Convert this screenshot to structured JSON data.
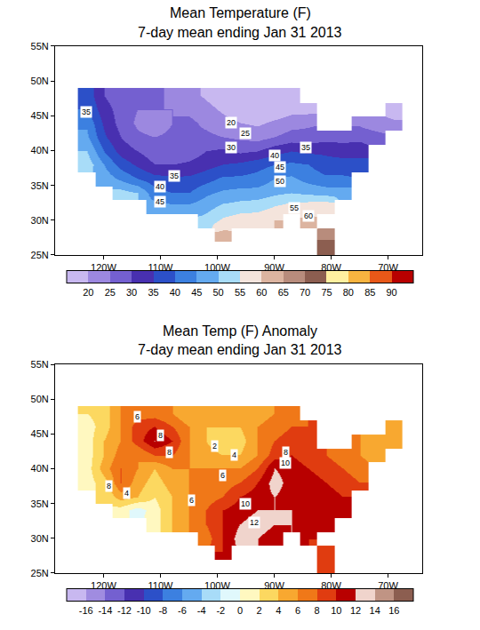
{
  "chart_data": [
    {
      "type": "heatmap",
      "title": "Mean Temperature (F)",
      "subtitle": "7-day mean ending Jan 31 2013",
      "x": [
        -123,
        -120,
        -117,
        -114,
        -111,
        -108,
        -105,
        -102,
        -99,
        -96,
        -93,
        -90,
        -87,
        -84,
        -81,
        -78,
        -75,
        -72,
        -69,
        -66
      ],
      "y": [
        26,
        28,
        30,
        32,
        34,
        36,
        38,
        40,
        42,
        44,
        46,
        48
      ],
      "z": [
        [
          null,
          null,
          null,
          null,
          null,
          null,
          null,
          null,
          null,
          null,
          null,
          null,
          null,
          null,
          73,
          null,
          null,
          null,
          null,
          null
        ],
        [
          null,
          null,
          null,
          null,
          null,
          null,
          null,
          null,
          62,
          null,
          null,
          null,
          null,
          null,
          68,
          null,
          null,
          null,
          null,
          null
        ],
        [
          null,
          null,
          null,
          null,
          null,
          null,
          null,
          52,
          56,
          58,
          58,
          60,
          null,
          61,
          null,
          null,
          null,
          null,
          null,
          null
        ],
        [
          null,
          null,
          null,
          null,
          47,
          46,
          46,
          48,
          51,
          52,
          53,
          55,
          57,
          58,
          59,
          null,
          null,
          null,
          null,
          null
        ],
        [
          null,
          null,
          52,
          50,
          42,
          40,
          40,
          44,
          46,
          47,
          47,
          49,
          50,
          49,
          48,
          48,
          null,
          null,
          null,
          null
        ],
        [
          null,
          48,
          44,
          40,
          37,
          36,
          36,
          38,
          41,
          41,
          42,
          45,
          46,
          43,
          41,
          41,
          null,
          null,
          null,
          null
        ],
        [
          53,
          45,
          38,
          34,
          30,
          30,
          31,
          33,
          35,
          36,
          38,
          40,
          41,
          40,
          37,
          37,
          36,
          null,
          null,
          null
        ],
        [
          50,
          40,
          33,
          30,
          27,
          26,
          27,
          30,
          31,
          29,
          30,
          33,
          35,
          34,
          34,
          33,
          34,
          null,
          null,
          null
        ],
        [
          46,
          36,
          30,
          26,
          25,
          26,
          26,
          26,
          25,
          24,
          23,
          25,
          27,
          27,
          28,
          28,
          28,
          27,
          null,
          null
        ],
        [
          44,
          34,
          28,
          24,
          22,
          25,
          26,
          24,
          22,
          20,
          19,
          21,
          23,
          24,
          null,
          null,
          24,
          22,
          21,
          null
        ],
        [
          40,
          32,
          28,
          25,
          25,
          25,
          24,
          22,
          19,
          17,
          15,
          16,
          18,
          18,
          null,
          null,
          null,
          null,
          17,
          null
        ],
        [
          38,
          30,
          27,
          26,
          26,
          24,
          22,
          19,
          16,
          14,
          13,
          15,
          17,
          null,
          null,
          null,
          null,
          null,
          null,
          null
        ]
      ],
      "xlim": [
        -128.5,
        -64
      ],
      "ylim": [
        25,
        55
      ],
      "xticks": [
        {
          "value": -120,
          "label": "120W"
        },
        {
          "value": -110,
          "label": "110W"
        },
        {
          "value": -100,
          "label": "100W"
        },
        {
          "value": -90,
          "label": "90W"
        },
        {
          "value": -80,
          "label": "80W"
        },
        {
          "value": -70,
          "label": "70W"
        }
      ],
      "yticks": [
        {
          "value": 25,
          "label": "25N"
        },
        {
          "value": 30,
          "label": "30N"
        },
        {
          "value": 35,
          "label": "35N"
        },
        {
          "value": 40,
          "label": "40N"
        },
        {
          "value": 45,
          "label": "45N"
        },
        {
          "value": 50,
          "label": "50N"
        },
        {
          "value": 55,
          "label": "55N"
        }
      ],
      "grid": false,
      "colorbar": {
        "range": [
          15,
          95
        ],
        "ticks": [
          20,
          25,
          30,
          35,
          40,
          45,
          50,
          55,
          60,
          65,
          70,
          75,
          80,
          85,
          90
        ],
        "colors": [
          "#c8b8f0",
          "#9c88e0",
          "#7460d0",
          "#4830b0",
          "#2c50c8",
          "#3c80e0",
          "#64aaf0",
          "#a8dcf8",
          "#f4e4dc",
          "#dcb4a0",
          "#b88c7c",
          "#8c5e50",
          "#fff0a0",
          "#f8b440",
          "#e85818",
          "#b80000"
        ]
      },
      "contour_labels": [
        {
          "x": -123,
          "y": 45.5,
          "value": 35
        },
        {
          "x": -97.5,
          "y": 44,
          "value": 20
        },
        {
          "x": -95,
          "y": 42.5,
          "value": 25
        },
        {
          "x": -97.5,
          "y": 40.5,
          "value": 30
        },
        {
          "x": -84.5,
          "y": 40.5,
          "value": 35
        },
        {
          "x": -90,
          "y": 39.3,
          "value": 40
        },
        {
          "x": -89,
          "y": 37.7,
          "value": 45
        },
        {
          "x": -89,
          "y": 35.6,
          "value": 50
        },
        {
          "x": -107.5,
          "y": 36.3,
          "value": 35
        },
        {
          "x": -110,
          "y": 34.8,
          "value": 40
        },
        {
          "x": -110,
          "y": 32.6,
          "value": 45
        },
        {
          "x": -86.5,
          "y": 31.8,
          "value": 55
        },
        {
          "x": -84,
          "y": 30.6,
          "value": 60
        }
      ]
    },
    {
      "type": "heatmap",
      "title": "Mean Temp (F) Anomaly",
      "subtitle": "7-day mean ending Jan 31 2013",
      "x": [
        -123,
        -120,
        -117,
        -114,
        -111,
        -108,
        -105,
        -102,
        -99,
        -96,
        -93,
        -90,
        -87,
        -84,
        -81,
        -78,
        -75,
        -72,
        -69,
        -66
      ],
      "y": [
        26,
        28,
        30,
        32,
        34,
        36,
        38,
        40,
        42,
        44,
        46,
        48
      ],
      "z": [
        [
          null,
          null,
          null,
          null,
          null,
          null,
          null,
          null,
          null,
          null,
          null,
          null,
          null,
          null,
          8,
          null,
          null,
          null,
          null,
          null
        ],
        [
          null,
          null,
          null,
          null,
          null,
          null,
          null,
          null,
          10,
          null,
          null,
          null,
          null,
          null,
          9,
          null,
          null,
          null,
          null,
          null
        ],
        [
          null,
          null,
          null,
          null,
          null,
          null,
          null,
          7,
          10,
          13,
          12,
          11,
          null,
          10,
          null,
          null,
          null,
          null,
          null,
          null
        ],
        [
          null,
          null,
          null,
          null,
          1,
          4,
          6,
          8,
          10,
          12,
          13,
          12,
          12,
          11,
          10,
          null,
          null,
          null,
          null,
          null
        ],
        [
          null,
          null,
          1,
          -1,
          1,
          4,
          6,
          8,
          10,
          11,
          12,
          12,
          12,
          11,
          11,
          10,
          null,
          null,
          null,
          null
        ],
        [
          null,
          2,
          5,
          4,
          2,
          4,
          6,
          7,
          8,
          10,
          11,
          12,
          11,
          11,
          11,
          10,
          null,
          null,
          null,
          null
        ],
        [
          1,
          3,
          8,
          5,
          3,
          5,
          6,
          7,
          7,
          8,
          10,
          13,
          11,
          11,
          10,
          9,
          8,
          null,
          null,
          null
        ],
        [
          1,
          5,
          8,
          6,
          4,
          6,
          6,
          6,
          6,
          6,
          8,
          12,
          11,
          10,
          9,
          8,
          7,
          null,
          null,
          null
        ],
        [
          1,
          4,
          7,
          6,
          8,
          8,
          6,
          5,
          4,
          4,
          6,
          9,
          10,
          9,
          8,
          7,
          6,
          5,
          null,
          null
        ],
        [
          1,
          4,
          6,
          9,
          12,
          10,
          6,
          4,
          2,
          3,
          6,
          8,
          9,
          8,
          null,
          null,
          6,
          5,
          4,
          null
        ],
        [
          1,
          3,
          6,
          9,
          10,
          8,
          6,
          4,
          4,
          4,
          6,
          7,
          8,
          8,
          null,
          null,
          null,
          null,
          4,
          null
        ],
        [
          2,
          3,
          6,
          7,
          7,
          6,
          4,
          4,
          4,
          4,
          5,
          6,
          6,
          null,
          null,
          null,
          null,
          null,
          null,
          null
        ]
      ],
      "xlim": [
        -128.5,
        -64
      ],
      "ylim": [
        25,
        55
      ],
      "xticks": [
        {
          "value": -120,
          "label": "120W"
        },
        {
          "value": -110,
          "label": "110W"
        },
        {
          "value": -100,
          "label": "100W"
        },
        {
          "value": -90,
          "label": "90W"
        },
        {
          "value": -80,
          "label": "80W"
        },
        {
          "value": -70,
          "label": "70W"
        }
      ],
      "yticks": [
        {
          "value": 25,
          "label": "25N"
        },
        {
          "value": 30,
          "label": "30N"
        },
        {
          "value": 35,
          "label": "35N"
        },
        {
          "value": 40,
          "label": "40N"
        },
        {
          "value": 45,
          "label": "45N"
        },
        {
          "value": 50,
          "label": "50N"
        },
        {
          "value": 55,
          "label": "55N"
        }
      ],
      "grid": false,
      "colorbar": {
        "range": [
          -18,
          18
        ],
        "ticks": [
          -16,
          -14,
          -12,
          -10,
          -8,
          -6,
          -4,
          -2,
          0,
          2,
          4,
          6,
          8,
          10,
          12,
          14,
          16
        ],
        "colors": [
          "#c8b8f0",
          "#a08ce0",
          "#7460d0",
          "#4830b0",
          "#2c50c8",
          "#3c80e0",
          "#64aaf0",
          "#a8dcf8",
          "#e0f8fc",
          "#fff8c0",
          "#fcd860",
          "#f8a830",
          "#f07818",
          "#e03c10",
          "#b80000",
          "#f0d4cc",
          "#c09484",
          "#8c5e50"
        ]
      },
      "contour_labels": [
        {
          "x": -114,
          "y": 47.5,
          "value": 6
        },
        {
          "x": -110,
          "y": 44.8,
          "value": 8
        },
        {
          "x": -108.5,
          "y": 42.3,
          "value": 8
        },
        {
          "x": -100.5,
          "y": 43.2,
          "value": 2
        },
        {
          "x": -97,
          "y": 42,
          "value": 4
        },
        {
          "x": -88,
          "y": 42.3,
          "value": 8
        },
        {
          "x": -88,
          "y": 40.8,
          "value": 10
        },
        {
          "x": -99,
          "y": 39,
          "value": 6
        },
        {
          "x": -104.5,
          "y": 35.5,
          "value": 6
        },
        {
          "x": -119,
          "y": 37.5,
          "value": 8
        },
        {
          "x": -116,
          "y": 36.5,
          "value": 4
        },
        {
          "x": -95,
          "y": 35,
          "value": 10
        },
        {
          "x": -93.5,
          "y": 32.3,
          "value": 12
        }
      ]
    }
  ]
}
